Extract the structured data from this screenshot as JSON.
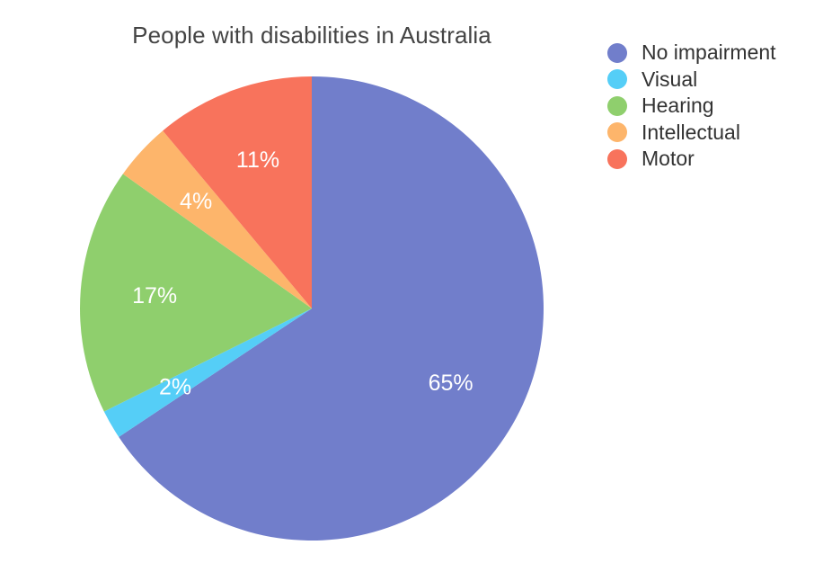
{
  "chart_data": {
    "type": "pie",
    "title": "People with disabilities in Australia",
    "categories": [
      "No impairment",
      "Visual",
      "Hearing",
      "Intellectual",
      "Motor"
    ],
    "values": [
      65,
      2,
      17,
      4,
      11
    ],
    "value_labels": [
      "65%",
      "2%",
      "17%",
      "4%",
      "11%"
    ],
    "colors": [
      "#717ecb",
      "#55cef7",
      "#8fcf6d",
      "#fdb56b",
      "#f8735c"
    ],
    "start_angle_deg": 0,
    "direction": "clockwise",
    "legend": "top-right"
  }
}
